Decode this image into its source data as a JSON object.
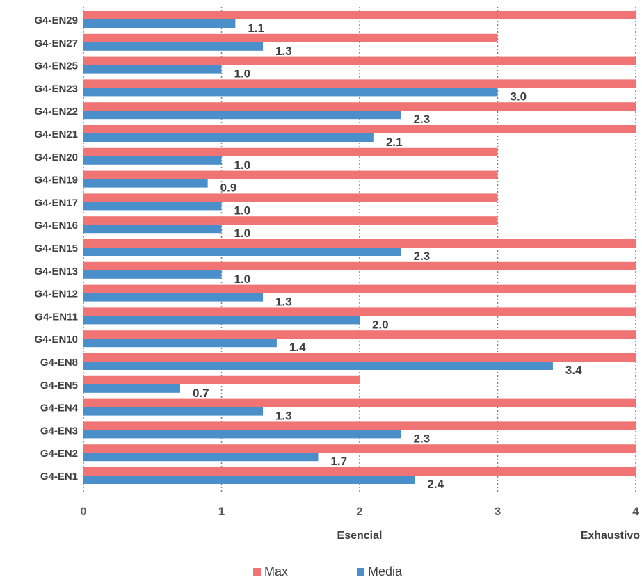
{
  "chart_data": {
    "type": "bar",
    "orientation": "horizontal",
    "categories": [
      "G4-EN29",
      "G4-EN27",
      "G4-EN25",
      "G4-EN23",
      "G4-EN22",
      "G4-EN21",
      "G4-EN20",
      "G4-EN19",
      "G4-EN17",
      "G4-EN16",
      "G4-EN15",
      "G4-EN13",
      "G4-EN12",
      "G4-EN11",
      "G4-EN10",
      "G4-EN8",
      "G4-EN5",
      "G4-EN4",
      "G4-EN3",
      "G4-EN2",
      "G4-EN1"
    ],
    "series": [
      {
        "name": "Max",
        "color": "#f07474",
        "values": [
          4,
          3,
          4,
          4,
          4,
          4,
          3,
          3,
          3,
          3,
          4,
          4,
          4,
          4,
          4,
          4,
          2,
          4,
          4,
          4,
          4
        ]
      },
      {
        "name": "Media",
        "color": "#4a8fc9",
        "values": [
          1.1,
          1.3,
          1.0,
          3.0,
          2.3,
          2.1,
          1.0,
          0.9,
          1.0,
          1.0,
          2.3,
          1.0,
          1.3,
          2.0,
          1.4,
          3.4,
          0.7,
          1.3,
          2.3,
          1.7,
          2.4
        ]
      }
    ],
    "data_labels": [
      "1.1",
      "1.3",
      "1.0",
      "3.0",
      "2.3",
      "2.1",
      "1.0",
      "0.9",
      "1.0",
      "1.0",
      "2.3",
      "1.0",
      "1.3",
      "2.0",
      "1.4",
      "3.4",
      "0.7",
      "1.3",
      "2.3",
      "1.7",
      "2.4"
    ],
    "xlim": [
      0,
      4
    ],
    "x_ticks": [
      "0",
      "1",
      "2",
      "3",
      "4"
    ],
    "x_level_labels": [
      {
        "at": 2,
        "text": "Esencial"
      },
      {
        "at": 4,
        "text": "Exhaustivo"
      }
    ],
    "grid": "vertical dotted",
    "legend": {
      "placement": "bottom",
      "entries": [
        "Max",
        "Media"
      ]
    },
    "title": "",
    "xlabel": "",
    "ylabel": ""
  }
}
